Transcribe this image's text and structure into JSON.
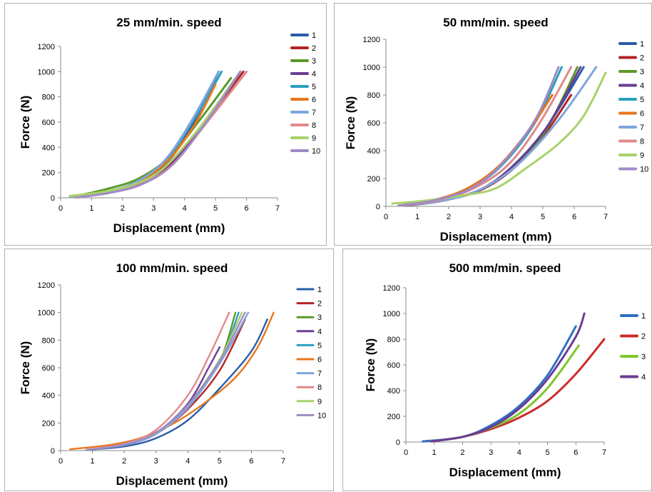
{
  "series_colors": [
    "#2a5caa",
    "#b32424",
    "#5b9a2a",
    "#6a3d94",
    "#2aa0c0",
    "#e8761c",
    "#7ea6dc",
    "#e08a8a",
    "#a9d16a",
    "#a08ac6"
  ],
  "series_colors_small": [
    "#2f6fc4",
    "#cc2b2b",
    "#7ec62a",
    "#6a3d94"
  ],
  "chart_data": [
    {
      "type": "line",
      "title": "25 mm/min. speed",
      "xlabel": "Displacement (mm)",
      "ylabel": "Force (N)",
      "xlim": [
        0,
        7
      ],
      "ylim": [
        0,
        1200
      ],
      "xticks": [
        "0",
        "1",
        "2",
        "3",
        "4",
        "5",
        "6",
        "7"
      ],
      "yticks": [
        "0",
        "200",
        "400",
        "600",
        "800",
        "1000",
        "1200"
      ],
      "series": [
        {
          "name": "1",
          "points": [
            [
              0.5,
              5
            ],
            [
              1.5,
              45
            ],
            [
              2.5,
              120
            ],
            [
              3.5,
              300
            ],
            [
              4.3,
              600
            ],
            [
              5.1,
              1000
            ]
          ]
        },
        {
          "name": "2",
          "points": [
            [
              0.6,
              5
            ],
            [
              1.6,
              50
            ],
            [
              2.6,
              120
            ],
            [
              3.6,
              280
            ],
            [
              4.6,
              580
            ],
            [
              5.9,
              1000
            ]
          ]
        },
        {
          "name": "3",
          "points": [
            [
              0.6,
              20
            ],
            [
              1.5,
              70
            ],
            [
              2.5,
              150
            ],
            [
              3.5,
              320
            ],
            [
              4.5,
              620
            ],
            [
              5.5,
              950
            ]
          ]
        },
        {
          "name": "4",
          "points": [
            [
              0.5,
              5
            ],
            [
              1.6,
              50
            ],
            [
              2.6,
              125
            ],
            [
              3.6,
              290
            ],
            [
              4.6,
              590
            ],
            [
              5.8,
              1000
            ]
          ]
        },
        {
          "name": "5",
          "points": [
            [
              0.4,
              5
            ],
            [
              1.4,
              45
            ],
            [
              2.4,
              120
            ],
            [
              3.4,
              300
            ],
            [
              4.3,
              620
            ],
            [
              5.2,
              1000
            ]
          ]
        },
        {
          "name": "6",
          "points": [
            [
              0.4,
              5
            ],
            [
              1.4,
              40
            ],
            [
              2.4,
              110
            ],
            [
              3.4,
              280
            ],
            [
              4.3,
              570
            ],
            [
              5.0,
              900
            ]
          ]
        },
        {
          "name": "7",
          "points": [
            [
              0.3,
              5
            ],
            [
              1.3,
              40
            ],
            [
              2.3,
              110
            ],
            [
              3.3,
              280
            ],
            [
              4.2,
              600
            ],
            [
              5.1,
              1000
            ]
          ]
        },
        {
          "name": "8",
          "points": [
            [
              0.6,
              5
            ],
            [
              1.6,
              45
            ],
            [
              2.6,
              110
            ],
            [
              3.6,
              260
            ],
            [
              4.6,
              560
            ],
            [
              6.0,
              1000
            ]
          ]
        },
        {
          "name": "9",
          "points": [
            [
              0.3,
              15
            ],
            [
              1.3,
              45
            ],
            [
              2.3,
              100
            ],
            [
              3.3,
              230
            ],
            [
              4.5,
              560
            ],
            [
              5.8,
              1000
            ]
          ]
        },
        {
          "name": "10",
          "points": [
            [
              0.6,
              5
            ],
            [
              1.6,
              40
            ],
            [
              2.6,
              105
            ],
            [
              3.6,
              260
            ],
            [
              4.7,
              600
            ],
            [
              5.8,
              1000
            ]
          ]
        }
      ]
    },
    {
      "type": "line",
      "title": "50 mm/min. speed",
      "xlabel": "Displacement (mm)",
      "ylabel": "Force (N)",
      "xlim": [
        0,
        7
      ],
      "ylim": [
        0,
        1200
      ],
      "xticks": [
        "0",
        "1",
        "2",
        "3",
        "4",
        "5",
        "6",
        "7"
      ],
      "yticks": [
        "0",
        "200",
        "400",
        "600",
        "800",
        "1000",
        "1200"
      ],
      "series": [
        {
          "name": "1",
          "points": [
            [
              0.6,
              5
            ],
            [
              1.8,
              40
            ],
            [
              3.0,
              120
            ],
            [
              4.0,
              280
            ],
            [
              5.1,
              560
            ],
            [
              6.3,
              1000
            ]
          ]
        },
        {
          "name": "2",
          "points": [
            [
              0.6,
              5
            ],
            [
              1.8,
              40
            ],
            [
              3.0,
              115
            ],
            [
              4.0,
              260
            ],
            [
              5.0,
              500
            ],
            [
              5.9,
              800
            ]
          ]
        },
        {
          "name": "3",
          "points": [
            [
              0.6,
              5
            ],
            [
              1.8,
              40
            ],
            [
              3.0,
              120
            ],
            [
              4.0,
              270
            ],
            [
              5.1,
              550
            ],
            [
              6.1,
              1000
            ]
          ]
        },
        {
          "name": "4",
          "points": [
            [
              0.6,
              5
            ],
            [
              1.8,
              40
            ],
            [
              3.0,
              120
            ],
            [
              4.0,
              280
            ],
            [
              5.1,
              560
            ],
            [
              6.2,
              1000
            ]
          ]
        },
        {
          "name": "5",
          "points": [
            [
              0.5,
              5
            ],
            [
              1.6,
              45
            ],
            [
              2.8,
              140
            ],
            [
              3.8,
              320
            ],
            [
              4.8,
              620
            ],
            [
              5.6,
              1000
            ]
          ]
        },
        {
          "name": "6",
          "points": [
            [
              0.4,
              5
            ],
            [
              1.6,
              50
            ],
            [
              2.6,
              130
            ],
            [
              3.6,
              290
            ],
            [
              4.6,
              560
            ],
            [
              5.3,
              800
            ]
          ]
        },
        {
          "name": "7",
          "points": [
            [
              0.5,
              5
            ],
            [
              1.8,
              40
            ],
            [
              3.0,
              120
            ],
            [
              4.2,
              300
            ],
            [
              5.5,
              620
            ],
            [
              6.7,
              1000
            ]
          ]
        },
        {
          "name": "8",
          "points": [
            [
              0.5,
              5
            ],
            [
              1.7,
              45
            ],
            [
              2.8,
              130
            ],
            [
              3.9,
              300
            ],
            [
              4.9,
              600
            ],
            [
              5.9,
              1000
            ]
          ]
        },
        {
          "name": "9",
          "points": [
            [
              0.2,
              20
            ],
            [
              1.2,
              40
            ],
            [
              2.5,
              80
            ],
            [
              3.5,
              130
            ],
            [
              4.5,
              280
            ],
            [
              5.5,
              450
            ],
            [
              6.3,
              650
            ],
            [
              7.0,
              960
            ]
          ]
        },
        {
          "name": "10",
          "points": [
            [
              0.4,
              5
            ],
            [
              1.6,
              45
            ],
            [
              2.8,
              140
            ],
            [
              3.8,
              330
            ],
            [
              4.8,
              640
            ],
            [
              5.5,
              1000
            ]
          ]
        }
      ]
    },
    {
      "type": "line",
      "title": "100 mm/min. speed",
      "xlabel": "Displacement (mm)",
      "ylabel": "Force (N)",
      "xlim": [
        0,
        7
      ],
      "ylim": [
        0,
        1200
      ],
      "xticks": [
        "0",
        "1",
        "2",
        "3",
        "4",
        "5",
        "6",
        "7"
      ],
      "yticks": [
        "0",
        "200",
        "400",
        "600",
        "800",
        "1000",
        "1200"
      ],
      "series": [
        {
          "name": "1",
          "points": [
            [
              0.8,
              5
            ],
            [
              2.0,
              30
            ],
            [
              3.0,
              90
            ],
            [
              4.0,
              220
            ],
            [
              5.0,
              450
            ],
            [
              6.0,
              720
            ],
            [
              6.5,
              950
            ]
          ]
        },
        {
          "name": "2",
          "points": [
            [
              0.8,
              5
            ],
            [
              2.0,
              40
            ],
            [
              3.0,
              120
            ],
            [
              4.0,
              300
            ],
            [
              5.0,
              580
            ],
            [
              5.8,
              950
            ]
          ]
        },
        {
          "name": "3",
          "points": [
            [
              0.8,
              5
            ],
            [
              2.0,
              45
            ],
            [
              3.0,
              130
            ],
            [
              4.0,
              330
            ],
            [
              5.0,
              650
            ],
            [
              5.5,
              1000
            ]
          ]
        },
        {
          "name": "4",
          "points": [
            [
              0.8,
              5
            ],
            [
              2.0,
              45
            ],
            [
              3.0,
              130
            ],
            [
              4.0,
              340
            ],
            [
              4.7,
              620
            ],
            [
              5.0,
              750
            ]
          ]
        },
        {
          "name": "5",
          "points": [
            [
              0.8,
              5
            ],
            [
              2.0,
              45
            ],
            [
              3.0,
              125
            ],
            [
              4.0,
              320
            ],
            [
              5.0,
              640
            ],
            [
              5.6,
              1000
            ]
          ]
        },
        {
          "name": "6",
          "points": [
            [
              0.3,
              10
            ],
            [
              1.5,
              40
            ],
            [
              2.5,
              90
            ],
            [
              3.5,
              190
            ],
            [
              4.5,
              340
            ],
            [
              5.5,
              530
            ],
            [
              6.2,
              750
            ],
            [
              6.7,
              1000
            ]
          ]
        },
        {
          "name": "7",
          "points": [
            [
              0.8,
              5
            ],
            [
              2.0,
              40
            ],
            [
              3.0,
              120
            ],
            [
              4.0,
              310
            ],
            [
              5.0,
              630
            ],
            [
              5.9,
              1000
            ]
          ]
        },
        {
          "name": "8",
          "points": [
            [
              0.8,
              5
            ],
            [
              2.0,
              50
            ],
            [
              3.0,
              150
            ],
            [
              4.0,
              400
            ],
            [
              4.7,
              700
            ],
            [
              5.3,
              1000
            ]
          ]
        },
        {
          "name": "9",
          "points": [
            [
              0.8,
              5
            ],
            [
              2.0,
              45
            ],
            [
              3.0,
              130
            ],
            [
              4.0,
              330
            ],
            [
              5.0,
              660
            ],
            [
              5.7,
              1000
            ]
          ]
        },
        {
          "name": "10",
          "points": [
            [
              0.8,
              5
            ],
            [
              2.0,
              45
            ],
            [
              3.0,
              130
            ],
            [
              4.0,
              330
            ],
            [
              5.0,
              650
            ],
            [
              5.8,
              1000
            ]
          ]
        }
      ]
    },
    {
      "type": "line",
      "title": "500 mm/min. speed",
      "xlabel": "Displacement (mm)",
      "ylabel": "Force (N)",
      "xlim": [
        0,
        7
      ],
      "ylim": [
        0,
        1200
      ],
      "xticks": [
        "0",
        "1",
        "2",
        "3",
        "4",
        "5",
        "6",
        "7"
      ],
      "yticks": [
        "0",
        "200",
        "400",
        "600",
        "800",
        "1000",
        "1200"
      ],
      "series": [
        {
          "name": "1",
          "points": [
            [
              0.6,
              5
            ],
            [
              2.0,
              40
            ],
            [
              3.0,
              130
            ],
            [
              4.0,
              280
            ],
            [
              5.0,
              520
            ],
            [
              6.0,
              900
            ]
          ]
        },
        {
          "name": "2",
          "points": [
            [
              0.9,
              5
            ],
            [
              2.0,
              40
            ],
            [
              3.0,
              100
            ],
            [
              4.0,
              190
            ],
            [
              5.0,
              320
            ],
            [
              6.0,
              530
            ],
            [
              7.0,
              800
            ]
          ]
        },
        {
          "name": "3",
          "points": [
            [
              0.9,
              5
            ],
            [
              2.0,
              40
            ],
            [
              3.0,
              110
            ],
            [
              4.0,
              220
            ],
            [
              5.0,
              420
            ],
            [
              6.1,
              750
            ]
          ]
        },
        {
          "name": "4",
          "points": [
            [
              0.9,
              5
            ],
            [
              2.0,
              40
            ],
            [
              3.0,
              115
            ],
            [
              4.0,
              260
            ],
            [
              5.0,
              490
            ],
            [
              6.0,
              820
            ],
            [
              6.3,
              1000
            ]
          ]
        }
      ]
    }
  ]
}
